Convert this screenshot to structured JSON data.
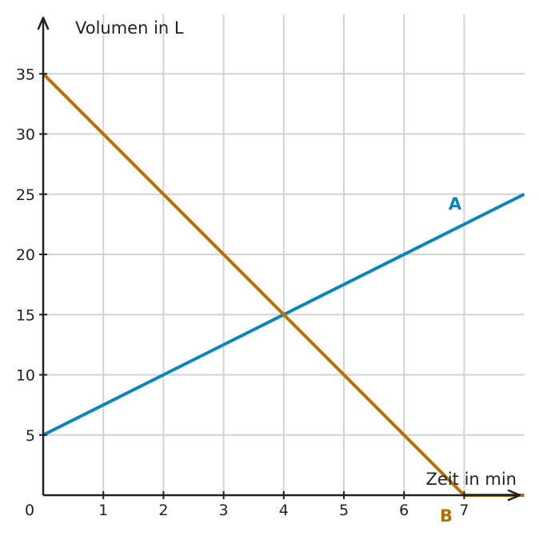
{
  "chart_data": {
    "type": "line",
    "xlabel": "Zeit in min",
    "ylabel": "Volumen in L",
    "xlim": [
      0,
      8
    ],
    "ylim": [
      0,
      35
    ],
    "x_ticks": [
      1,
      2,
      3,
      4,
      5,
      6,
      7
    ],
    "y_ticks": [
      5,
      10,
      15,
      20,
      25,
      30,
      35
    ],
    "origin_label": "0",
    "grid": true,
    "series": [
      {
        "name": "A",
        "color": "#0a86bb",
        "x": [
          0,
          8
        ],
        "y": [
          5,
          25
        ]
      },
      {
        "name": "B",
        "color": "#b86f05",
        "x": [
          0,
          7,
          8
        ],
        "y": [
          35,
          0,
          0
        ]
      }
    ]
  }
}
